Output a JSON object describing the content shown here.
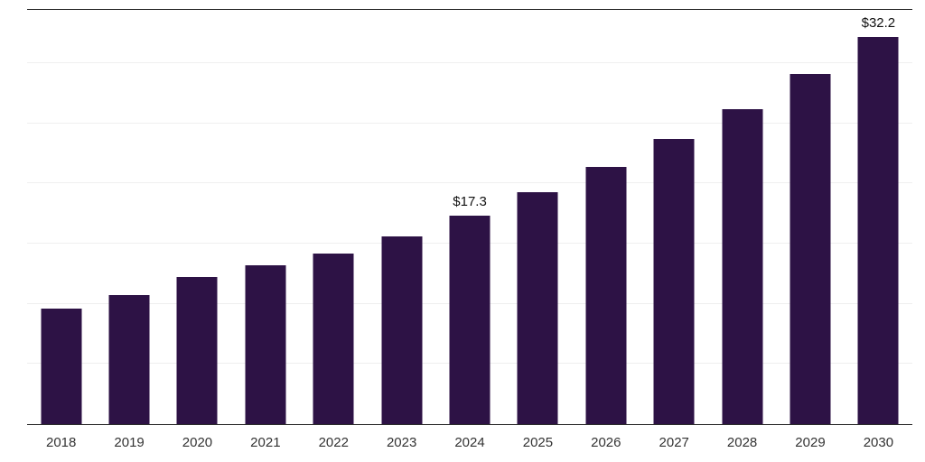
{
  "chart_data": {
    "type": "bar",
    "title": "",
    "xlabel": "",
    "ylabel": "",
    "categories": [
      "2018",
      "2019",
      "2020",
      "2021",
      "2022",
      "2023",
      "2024",
      "2025",
      "2026",
      "2027",
      "2028",
      "2029",
      "2030"
    ],
    "values": [
      9.6,
      10.7,
      12.2,
      13.2,
      14.2,
      15.6,
      17.3,
      19.3,
      21.4,
      23.7,
      26.2,
      29.1,
      32.2
    ],
    "data_labels": [
      {
        "category": "2024",
        "text": "$17.3"
      },
      {
        "category": "2030",
        "text": "$32.2"
      }
    ],
    "bar_color": "#2d1245",
    "gridline_values": [
      5,
      10,
      15,
      20,
      25,
      30
    ],
    "ylim": [
      0,
      34.5
    ],
    "grid": true,
    "legend": "none"
  }
}
